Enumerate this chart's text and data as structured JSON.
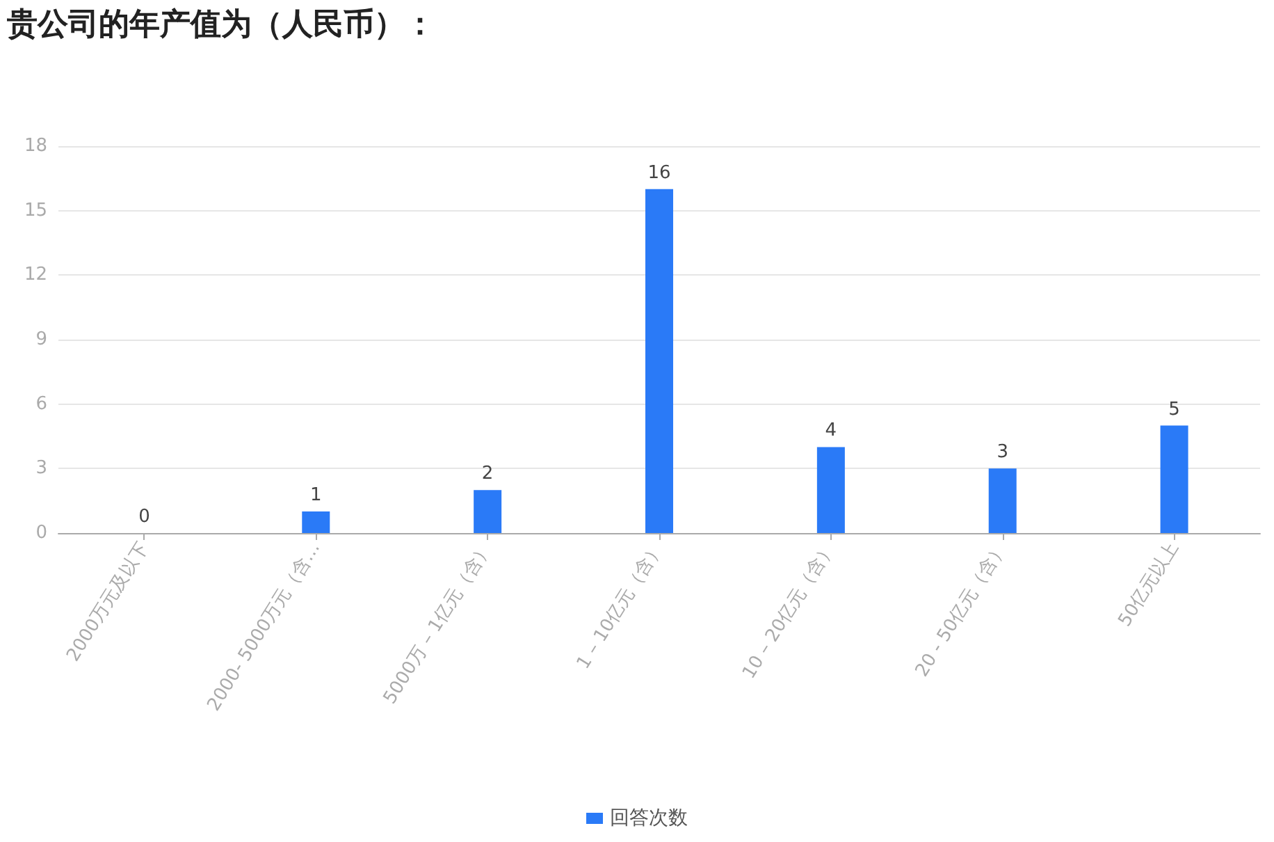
{
  "chart_data": {
    "type": "bar",
    "title": "贵公司的年产值为（人民币）：",
    "categories": [
      "2000万元及以下",
      "2000- 5000万元（含…",
      "5000万 – 1亿元（含）",
      "1 – 10亿元（含）",
      "10 – 20亿元（含）",
      "20 - 50亿元（含）",
      "50亿元以上"
    ],
    "series": [
      {
        "name": "回答次数",
        "color": "#2a7af7",
        "values": [
          0,
          1,
          2,
          16,
          4,
          3,
          5
        ]
      }
    ],
    "ylim": [
      0,
      18
    ],
    "yticks": [
      0,
      3,
      6,
      9,
      12,
      15,
      18
    ],
    "grid": "y",
    "legend": "bottom",
    "data_labels": true
  }
}
